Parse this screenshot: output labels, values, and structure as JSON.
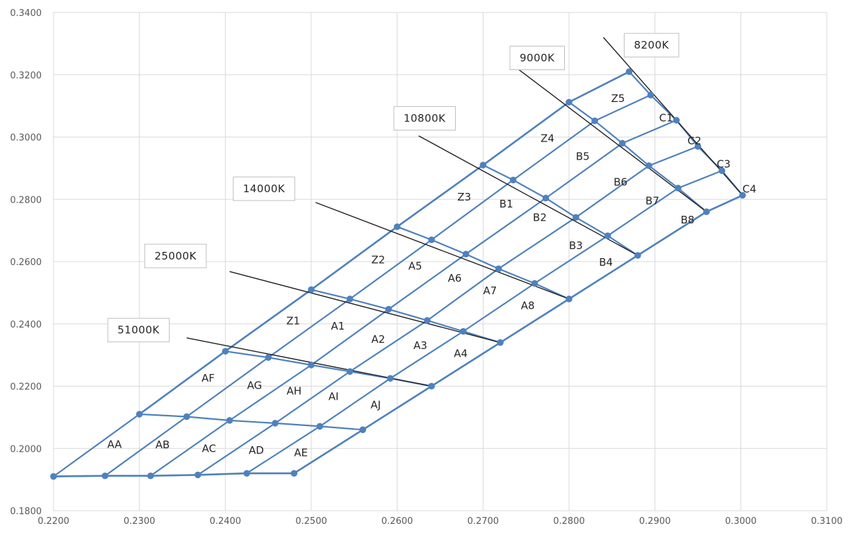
{
  "chart_data": {
    "type": "scatter",
    "title": "",
    "xlabel": "",
    "ylabel": "",
    "xlim": [
      0.22,
      0.31
    ],
    "ylim": [
      0.18,
      0.34
    ],
    "x_ticks": [
      0.22,
      0.23,
      0.24,
      0.25,
      0.26,
      0.27,
      0.28,
      0.29,
      0.3,
      0.31
    ],
    "y_ticks": [
      0.18,
      0.2,
      0.22,
      0.24,
      0.26,
      0.28,
      0.3,
      0.32,
      0.34
    ],
    "x_tick_labels": [
      "0.2200",
      "0.2300",
      "0.2400",
      "0.2500",
      "0.2600",
      "0.2700",
      "0.2800",
      "0.2900",
      "0.3000",
      "0.3100"
    ],
    "y_tick_labels": [
      "0.1800",
      "0.2000",
      "0.2200",
      "0.2400",
      "0.2600",
      "0.2800",
      "0.3000",
      "0.3200",
      "0.3400"
    ],
    "grid": true,
    "legend": false,
    "colors": {
      "series": "#4f81bd",
      "line": "#1f1f1f",
      "grid": "#d9d9d9"
    },
    "upper_boundary": [
      [
        0.23,
        0.211
      ],
      [
        0.24,
        0.2312
      ],
      [
        0.25,
        0.251
      ],
      [
        0.26,
        0.2712
      ],
      [
        0.27,
        0.291
      ],
      [
        0.28,
        0.3112
      ],
      [
        0.287,
        0.321
      ]
    ],
    "lower_boundary": [
      [
        0.22,
        0.191
      ],
      [
        0.226,
        0.1912
      ],
      [
        0.2313,
        0.1912
      ],
      [
        0.2368,
        0.1915
      ],
      [
        0.2425,
        0.192
      ],
      [
        0.248,
        0.192
      ],
      [
        0.256,
        0.206
      ],
      [
        0.264,
        0.22
      ],
      [
        0.272,
        0.234
      ],
      [
        0.28,
        0.248
      ],
      [
        0.288,
        0.262
      ],
      [
        0.296,
        0.276
      ],
      [
        0.3002,
        0.2813
      ]
    ],
    "rows": [
      [
        [
          0.22,
          0.191
        ],
        [
          0.226,
          0.1912
        ],
        [
          0.2313,
          0.1912
        ],
        [
          0.2368,
          0.1915
        ],
        [
          0.2425,
          0.192
        ],
        [
          0.248,
          0.192
        ]
      ],
      [
        [
          0.23,
          0.211
        ],
        [
          0.2355,
          0.2102
        ],
        [
          0.2405,
          0.209
        ],
        [
          0.2458,
          0.2081
        ],
        [
          0.251,
          0.2071
        ],
        [
          0.256,
          0.206
        ]
      ],
      [
        [
          0.24,
          0.2312
        ],
        [
          0.245,
          0.2292
        ],
        [
          0.25,
          0.2268
        ],
        [
          0.2545,
          0.2247
        ],
        [
          0.2592,
          0.2225
        ],
        [
          0.264,
          0.22
        ]
      ],
      [
        [
          0.25,
          0.251
        ],
        [
          0.2545,
          0.248
        ],
        [
          0.259,
          0.2447
        ],
        [
          0.2635,
          0.2411
        ],
        [
          0.2677,
          0.2376
        ],
        [
          0.272,
          0.234
        ]
      ],
      [
        [
          0.26,
          0.2712
        ],
        [
          0.264,
          0.267
        ],
        [
          0.268,
          0.2624
        ],
        [
          0.2718,
          0.2577
        ],
        [
          0.276,
          0.253
        ],
        [
          0.28,
          0.248
        ]
      ],
      [
        [
          0.27,
          0.291
        ],
        [
          0.2735,
          0.2862
        ],
        [
          0.2773,
          0.2804
        ],
        [
          0.2808,
          0.2742
        ],
        [
          0.2845,
          0.2683
        ],
        [
          0.288,
          0.262
        ]
      ],
      [
        [
          0.28,
          0.3112
        ],
        [
          0.283,
          0.3052
        ],
        [
          0.2862,
          0.298
        ],
        [
          0.2893,
          0.2908
        ],
        [
          0.2927,
          0.2836
        ],
        [
          0.296,
          0.276
        ]
      ],
      [
        [
          0.287,
          0.321
        ],
        [
          0.2895,
          0.3135
        ],
        [
          0.2925,
          0.3054
        ],
        [
          0.295,
          0.297
        ],
        [
          0.2978,
          0.2892
        ],
        [
          0.3002,
          0.2813
        ]
      ]
    ],
    "isotherms": [
      {
        "label": "51000K",
        "line": [
          [
            0.2355,
            0.2355
          ],
          [
            0.264,
            0.22
          ]
        ],
        "label_pos": [
          0.2299,
          0.238
        ]
      },
      {
        "label": "25000K",
        "line": [
          [
            0.2405,
            0.2568
          ],
          [
            0.272,
            0.234
          ]
        ],
        "label_pos": [
          0.2342,
          0.2618
        ]
      },
      {
        "label": "14000K",
        "line": [
          [
            0.2505,
            0.279
          ],
          [
            0.28,
            0.248
          ]
        ],
        "label_pos": [
          0.2445,
          0.2834
        ]
      },
      {
        "label": "10800K",
        "line": [
          [
            0.2625,
            0.3004
          ],
          [
            0.288,
            0.262
          ]
        ],
        "label_pos": [
          0.2632,
          0.306
        ]
      },
      {
        "label": "9000K",
        "line": [
          [
            0.274,
            0.322
          ],
          [
            0.296,
            0.276
          ]
        ],
        "label_pos": [
          0.2763,
          0.3254
        ]
      },
      {
        "label": "8200K",
        "line": [
          [
            0.284,
            0.332
          ],
          [
            0.3002,
            0.2813
          ]
        ],
        "label_pos": [
          0.2896,
          0.3295
        ]
      }
    ],
    "annotations": [
      {
        "text": "AA",
        "x": 0.2271,
        "y": 0.2013
      },
      {
        "text": "AB",
        "x": 0.2327,
        "y": 0.2012
      },
      {
        "text": "AC",
        "x": 0.2381,
        "y": 0.2
      },
      {
        "text": "AD",
        "x": 0.2436,
        "y": 0.1994
      },
      {
        "text": "AE",
        "x": 0.2488,
        "y": 0.1986
      },
      {
        "text": "AF",
        "x": 0.238,
        "y": 0.2226
      },
      {
        "text": "AG",
        "x": 0.2434,
        "y": 0.2202
      },
      {
        "text": "AH",
        "x": 0.248,
        "y": 0.2184
      },
      {
        "text": "AI",
        "x": 0.2526,
        "y": 0.2167
      },
      {
        "text": "AJ",
        "x": 0.2575,
        "y": 0.214
      },
      {
        "text": "Z1",
        "x": 0.2479,
        "y": 0.241
      },
      {
        "text": "A1",
        "x": 0.2531,
        "y": 0.2393
      },
      {
        "text": "A2",
        "x": 0.2578,
        "y": 0.235
      },
      {
        "text": "A3",
        "x": 0.2627,
        "y": 0.233
      },
      {
        "text": "A4",
        "x": 0.2674,
        "y": 0.2305
      },
      {
        "text": "Z2",
        "x": 0.2578,
        "y": 0.2606
      },
      {
        "text": "A5",
        "x": 0.2621,
        "y": 0.2585
      },
      {
        "text": "A6",
        "x": 0.2667,
        "y": 0.2547
      },
      {
        "text": "A7",
        "x": 0.2708,
        "y": 0.2506
      },
      {
        "text": "A8",
        "x": 0.2752,
        "y": 0.2458
      },
      {
        "text": "Z3",
        "x": 0.2678,
        "y": 0.2807
      },
      {
        "text": "B1",
        "x": 0.2727,
        "y": 0.2785
      },
      {
        "text": "B2",
        "x": 0.2766,
        "y": 0.2742
      },
      {
        "text": "B3",
        "x": 0.2808,
        "y": 0.2651
      },
      {
        "text": "B4",
        "x": 0.2843,
        "y": 0.2598
      },
      {
        "text": "Z4",
        "x": 0.2775,
        "y": 0.2995
      },
      {
        "text": "B5",
        "x": 0.2816,
        "y": 0.2938
      },
      {
        "text": "B6",
        "x": 0.286,
        "y": 0.2855
      },
      {
        "text": "B7",
        "x": 0.2897,
        "y": 0.2795
      },
      {
        "text": "B8",
        "x": 0.2938,
        "y": 0.2734
      },
      {
        "text": "Z5",
        "x": 0.2857,
        "y": 0.3124
      },
      {
        "text": "C1",
        "x": 0.2913,
        "y": 0.3061
      },
      {
        "text": "C2",
        "x": 0.2946,
        "y": 0.2988
      },
      {
        "text": "C3",
        "x": 0.298,
        "y": 0.2913
      },
      {
        "text": "C4",
        "x": 0.301,
        "y": 0.2833
      }
    ]
  }
}
